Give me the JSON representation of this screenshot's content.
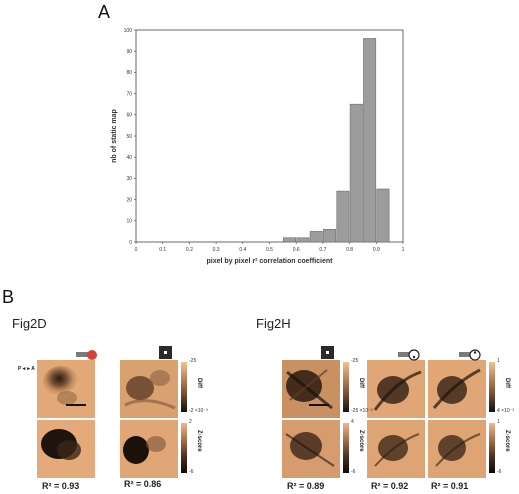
{
  "panels": {
    "a_letter": "A",
    "b_letter": "B"
  },
  "chart_data": {
    "type": "bar",
    "xlabel": "pixel by pixel r² correlation coefficient",
    "ylabel": "nb of static map",
    "xlim": [
      0,
      1
    ],
    "ylim": [
      0,
      100
    ],
    "xticks": [
      "0",
      "0.1",
      "0.2",
      "0.3",
      "0.4",
      "0.5",
      "0.6",
      "0.7",
      "0.8",
      "0.9",
      "1"
    ],
    "yticks": [
      "0",
      "10",
      "20",
      "30",
      "40",
      "50",
      "60",
      "70",
      "80",
      "90",
      "100"
    ],
    "bin_width": 0.05,
    "bin_starts": [
      0.55,
      0.6,
      0.65,
      0.7,
      0.75,
      0.8,
      0.85,
      0.9,
      0.95
    ],
    "values": [
      2,
      2,
      5,
      6,
      24,
      65,
      96,
      25,
      0
    ],
    "bar_color": "#9c9c9c",
    "grid": false
  },
  "fig2d": {
    "label": "Fig2D",
    "r2_values": [
      "R² = 0.93",
      "R² = 0.86"
    ],
    "colorbar_top": {
      "name": "Diff",
      "max": "-25",
      "min": "-2 ×10⁻³"
    },
    "colorbar_bottom": {
      "name": "Z-score",
      "max": "2",
      "min": "-6"
    },
    "orientation": "P◄►A",
    "stim_icons": [
      "red-stim-icon",
      "square-stim-icon"
    ]
  },
  "fig2h": {
    "label": "Fig2H",
    "r2_values": [
      "R² = 0.89",
      "R² = 0.92",
      "R² = 0.91"
    ],
    "colorbar_top_1": {
      "name": "Diff",
      "max": "-25",
      "min": "-25 ×10⁻³"
    },
    "colorbar_top_2": {
      "name": "Diff",
      "max": "1",
      "min": "4 ×10⁻³"
    },
    "colorbar_bottom_1": {
      "name": "Z-score",
      "max": "4",
      "min": "-6"
    },
    "colorbar_bottom_2": {
      "name": "Z-score",
      "max": "1",
      "min": "-6"
    },
    "stim_icons": [
      "square-stim-icon",
      "whisker-stim-icon",
      "whisker-stim-icon"
    ]
  }
}
